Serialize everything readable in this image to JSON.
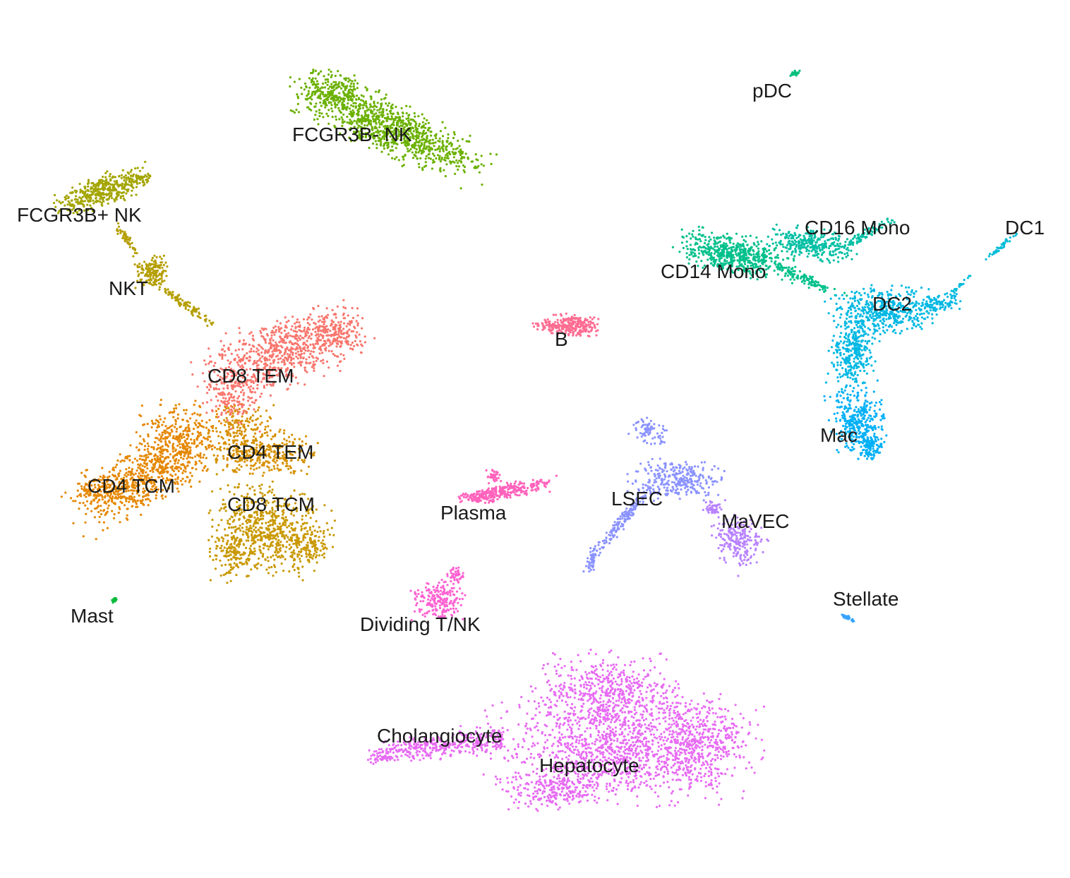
{
  "chart_data": {
    "type": "scatter",
    "title": "",
    "xlabel": "",
    "ylabel": "",
    "axes_visible": false,
    "grid": false,
    "legend": "none",
    "labels_on_clusters": true,
    "series": [
      {
        "name": "CD8 TEM",
        "label": "CD8 TEM",
        "color": "#F8766D"
      },
      {
        "name": "CD4 TCM",
        "label": "CD4 TCM",
        "color": "#E58700"
      },
      {
        "name": "CD4 TEM",
        "label": "CD4 TEM",
        "color": "#D69100"
      },
      {
        "name": "CD8 TCM",
        "label": "CD8 TCM",
        "color": "#C99800"
      },
      {
        "name": "NKT",
        "label": "NKT",
        "color": "#B49E00"
      },
      {
        "name": "FCGR3B+ NK",
        "label": "FCGR3B+ NK",
        "color": "#A3A500"
      },
      {
        "name": "FCGR3B- NK",
        "label": "FCGR3B- NK",
        "color": "#6BB100"
      },
      {
        "name": "Mast",
        "label": "Mast",
        "color": "#00BA38"
      },
      {
        "name": "pDC",
        "label": "pDC",
        "color": "#00BF7D"
      },
      {
        "name": "CD14 Mono",
        "label": "CD14 Mono",
        "color": "#00C08B"
      },
      {
        "name": "CD16 Mono",
        "label": "CD16 Mono",
        "color": "#00BFA4"
      },
      {
        "name": "DC1",
        "label": "DC1",
        "color": "#00BCD8"
      },
      {
        "name": "DC2",
        "label": "DC2",
        "color": "#00B8E3"
      },
      {
        "name": "Mac",
        "label": "Mac",
        "color": "#00B0F6"
      },
      {
        "name": "Stellate",
        "label": "Stellate",
        "color": "#35A2FF"
      },
      {
        "name": "LSEC",
        "label": "LSEC",
        "color": "#8B93FF"
      },
      {
        "name": "MaVEC",
        "label": "MaVEC",
        "color": "#B983FF"
      },
      {
        "name": "Hepatocyte",
        "label": "Hepatocyte",
        "color": "#E76BF3"
      },
      {
        "name": "Cholangiocyte",
        "label": "Cholangiocyte",
        "color": "#E76BF3"
      },
      {
        "name": "Dividing T/NK",
        "label": "Dividing T/NK",
        "color": "#FD61D1"
      },
      {
        "name": "Plasma",
        "label": "Plasma",
        "color": "#FF62BC"
      },
      {
        "name": "B",
        "label": "B",
        "color": "#FF6C91"
      }
    ]
  }
}
